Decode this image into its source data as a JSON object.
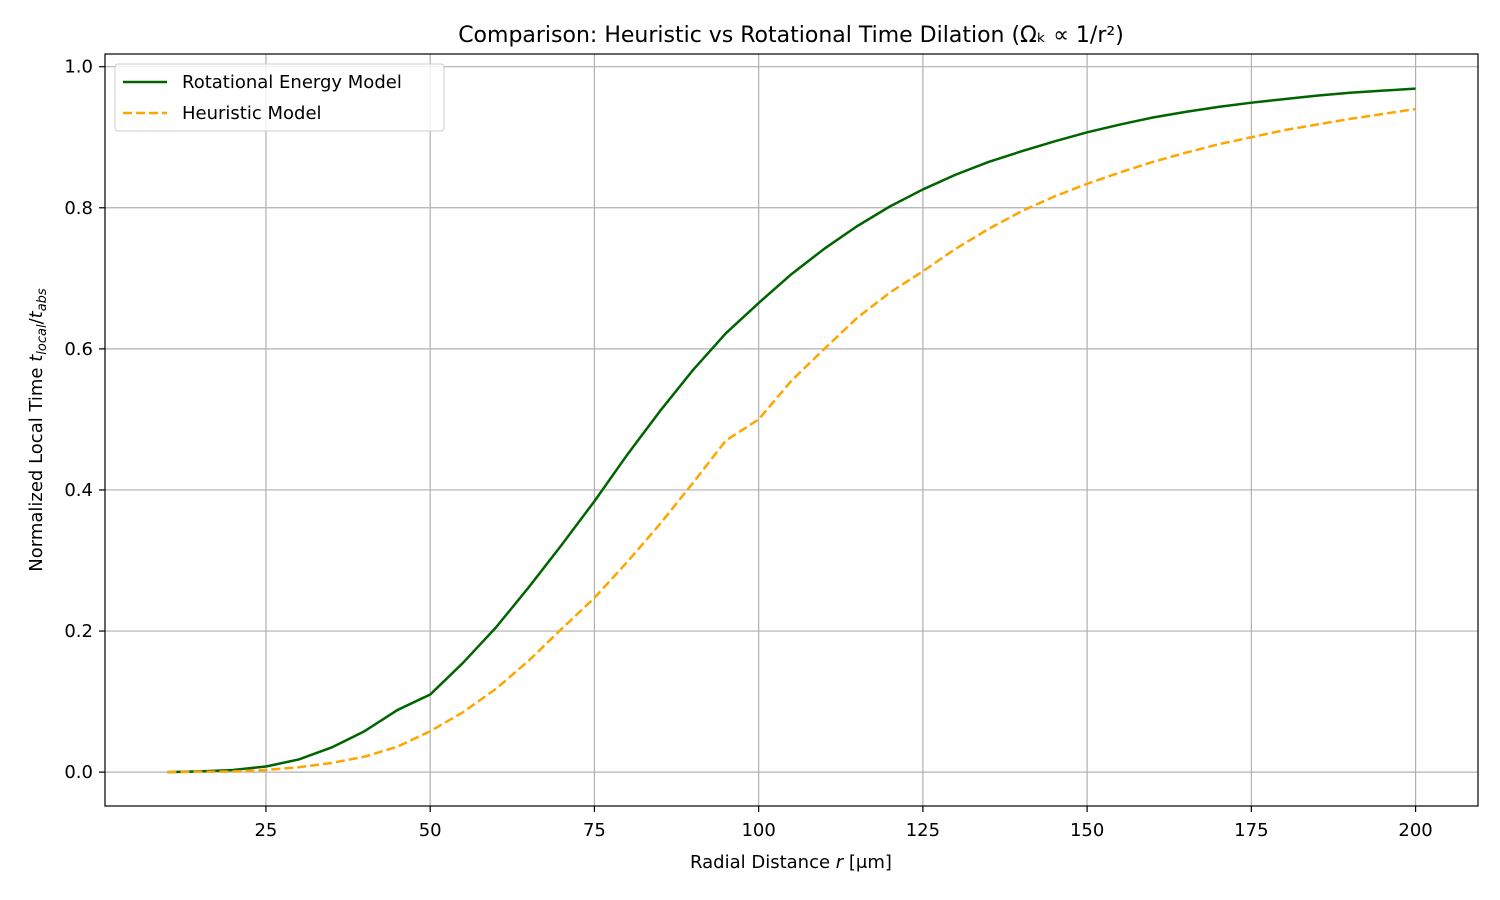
{
  "chart_data": {
    "type": "line",
    "title": "Comparison: Heuristic vs Rotational Time Dilation (Ωₖ ∝ 1/r²)",
    "xlabel": "Radial Distance r [μm]",
    "ylabel": "Normalized Local Time t_local/t_abs",
    "xlim": [
      0.5,
      209.5
    ],
    "ylim": [
      -0.048,
      1.018
    ],
    "xticks": [
      25,
      50,
      75,
      100,
      125,
      150,
      175,
      200
    ],
    "yticks": [
      0.0,
      0.2,
      0.4,
      0.6,
      0.8,
      1.0
    ],
    "xtick_labels": [
      "25",
      "50",
      "75",
      "100",
      "125",
      "150",
      "175",
      "200"
    ],
    "ytick_labels": [
      "0.0",
      "0.2",
      "0.4",
      "0.6",
      "0.8",
      "1.0"
    ],
    "grid": true,
    "legend_position": "top-left",
    "x": [
      10,
      15,
      20,
      25,
      30,
      35,
      40,
      45,
      50,
      55,
      60,
      65,
      70,
      75,
      80,
      85,
      90,
      95,
      100,
      105,
      110,
      115,
      120,
      125,
      130,
      135,
      140,
      145,
      150,
      155,
      160,
      165,
      170,
      175,
      180,
      185,
      190,
      195,
      200
    ],
    "series": [
      {
        "name": "Rotational Energy Model",
        "color": "#006400",
        "style": "solid",
        "values": [
          0.0,
          0.001,
          0.003,
          0.008,
          0.018,
          0.035,
          0.058,
          0.088,
          0.11,
          0.155,
          0.205,
          0.262,
          0.322,
          0.384,
          0.45,
          0.512,
          0.57,
          0.622,
          0.665,
          0.706,
          0.742,
          0.774,
          0.802,
          0.826,
          0.847,
          0.865,
          0.88,
          0.894,
          0.907,
          0.918,
          0.928,
          0.936,
          0.943,
          0.949,
          0.954,
          0.959,
          0.963,
          0.966,
          0.969
        ]
      },
      {
        "name": "Heuristic Model",
        "color": "#FFA500",
        "style": "dashed",
        "values": [
          0.0,
          0.0005,
          0.001,
          0.003,
          0.007,
          0.013,
          0.022,
          0.036,
          0.058,
          0.085,
          0.118,
          0.158,
          0.203,
          0.247,
          0.298,
          0.352,
          0.41,
          0.47,
          0.5,
          0.555,
          0.6,
          0.644,
          0.68,
          0.71,
          0.742,
          0.77,
          0.795,
          0.816,
          0.834,
          0.85,
          0.865,
          0.878,
          0.89,
          0.9,
          0.91,
          0.918,
          0.926,
          0.933,
          0.94
        ]
      }
    ]
  }
}
